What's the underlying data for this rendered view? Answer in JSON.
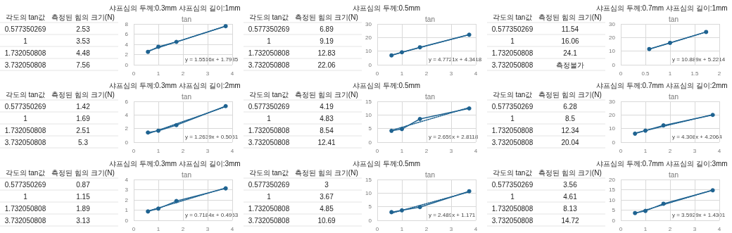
{
  "chart_data": [
    {
      "type": "line",
      "subtitle": "샤프심의 두께:0.3mm 샤프심의 길이:1mm",
      "title": "tan",
      "x": [
        0.577350269,
        1,
        1.732050808,
        3.732050808
      ],
      "grid": true,
      "xlim": [
        0,
        4
      ],
      "xticks": [
        0,
        1,
        2,
        3,
        4
      ],
      "ylim": [
        0,
        8
      ],
      "yticks": [
        0,
        2,
        4,
        6,
        8
      ],
      "annotations": [
        "y = 1.5516x + 1.7935",
        "각도의 tan값",
        "측정된 힘의 크기(N)",
        "0.577350269",
        "2.53",
        "1",
        "3.53",
        "1.732050808",
        "4.48",
        "3.732050808",
        "7.56"
      ],
      "series": [
        {
          "color": "#1f6391",
          "marker": "circle",
          "values": [
            2.53,
            3.53,
            4.48,
            7.56
          ]
        },
        {
          "type": "line",
          "color": "#1f6391",
          "line_style": "dotted",
          "marker": "none",
          "x": [
            0.577350269,
            3.732050808
          ],
          "values": [
            2.69,
            7.58
          ]
        }
      ]
    },
    {
      "type": "line",
      "subtitle": "샤프심의 두께:0.5mm",
      "title": "tan",
      "x": [
        0.577350269,
        1,
        1.732050808,
        3.732050808
      ],
      "grid": true,
      "xlim": [
        0,
        4
      ],
      "xticks": [
        0,
        1,
        2,
        3,
        4
      ],
      "ylim": [
        0,
        30
      ],
      "yticks": [
        0,
        10,
        20,
        30
      ],
      "annotations": [
        "y = 4.7721x + 4.3418",
        "각도의 tan값",
        "측정된 힘의 크기(N)",
        "0.577350269",
        "6.89",
        "1",
        "9.19",
        "1.732050808",
        "12.83",
        "3.732050808",
        "22.06"
      ],
      "series": [
        {
          "color": "#1f6391",
          "marker": "circle",
          "values": [
            6.89,
            9.19,
            12.83,
            22.06
          ]
        },
        {
          "type": "line",
          "color": "#1f6391",
          "line_style": "dotted",
          "marker": "none",
          "x": [
            0.577350269,
            3.732050808
          ],
          "values": [
            7.1,
            22.15
          ]
        }
      ]
    },
    {
      "type": "line",
      "subtitle": "샤프심의 두께:0.7mm 샤프심의 길이:1mm",
      "title": "tan",
      "x": [
        0.577350269,
        1,
        1.732050808
      ],
      "grid": true,
      "xlim": [
        0,
        2
      ],
      "xticks": [
        0,
        0.5,
        1,
        1.5,
        2
      ],
      "ylim": [
        0,
        30
      ],
      "yticks": [
        0,
        10,
        20,
        30
      ],
      "annotations": [
        "y = 10.889x + 5.2214",
        "각도의 tan값",
        "측정된 힘의 크기(N)",
        "0.577350269",
        "11.54",
        "1",
        "16.06",
        "1.732050808",
        "24.1",
        "3.732050808",
        "측정불가"
      ],
      "series": [
        {
          "color": "#1f6391",
          "marker": "circle",
          "values": [
            11.54,
            16.06,
            24.1
          ]
        },
        {
          "type": "line",
          "color": "#1f6391",
          "line_style": "dotted",
          "marker": "none",
          "x": [
            0.577350269,
            1.732050808
          ],
          "values": [
            11.51,
            24.08
          ]
        }
      ]
    },
    {
      "type": "line",
      "subtitle": "샤프심의 두께:0.3mm 샤프심의 길이:2mm",
      "title": "tan",
      "x": [
        0.577350269,
        1,
        1.732050808,
        3.732050808
      ],
      "grid": true,
      "xlim": [
        0,
        4
      ],
      "xticks": [
        0,
        1,
        2,
        3,
        4
      ],
      "ylim": [
        0,
        6
      ],
      "yticks": [
        0,
        2,
        4,
        6
      ],
      "annotations": [
        "y = 1.2639x + 0.5051",
        "각도의 tan값",
        "측정된 힘의 크기(N)",
        "0.577350269",
        "1.42",
        "1",
        "1.69",
        "1.732050808",
        "2.51",
        "3.732050808",
        "5.3"
      ],
      "series": [
        {
          "color": "#1f6391",
          "marker": "circle",
          "values": [
            1.42,
            1.69,
            2.51,
            5.3
          ]
        },
        {
          "type": "line",
          "color": "#1f6391",
          "line_style": "dotted",
          "marker": "none",
          "x": [
            0.577350269,
            3.732050808
          ],
          "values": [
            1.23,
            5.22
          ]
        }
      ]
    },
    {
      "type": "line",
      "subtitle": "샤프심의 두께:0.5mm",
      "title": "tan",
      "x": [
        0.577350269,
        1,
        1.732050808,
        3.732050808
      ],
      "grid": true,
      "xlim": [
        0,
        4
      ],
      "xticks": [
        0,
        1,
        2,
        3,
        4
      ],
      "ylim": [
        0,
        15
      ],
      "yticks": [
        0,
        5,
        10,
        15
      ],
      "annotations": [
        "y = 2.659x + 2.8118",
        "각도의 tan값",
        "측정된 힘의 크기(N)",
        "0.577350269",
        "4.19",
        "1",
        "4.83",
        "1.732050808",
        "8.54",
        "3.732050808",
        "12.41"
      ],
      "series": [
        {
          "color": "#1f6391",
          "marker": "circle",
          "values": [
            4.19,
            4.83,
            8.54,
            12.41
          ]
        },
        {
          "type": "line",
          "color": "#1f6391",
          "line_style": "dotted",
          "marker": "none",
          "x": [
            0.577350269,
            3.732050808
          ],
          "values": [
            4.35,
            12.74
          ]
        }
      ]
    },
    {
      "type": "line",
      "subtitle": "샤프심의 두께:0.7mm 샤프심의 길이:2mm",
      "title": "tan",
      "x": [
        0.577350269,
        1,
        1.732050808,
        3.732050808
      ],
      "grid": true,
      "xlim": [
        0,
        4
      ],
      "xticks": [
        0,
        1,
        2,
        3,
        4
      ],
      "ylim": [
        0,
        30
      ],
      "yticks": [
        0,
        10,
        20,
        30
      ],
      "annotations": [
        "y = 4.308x + 4.2064",
        "각도의 tan값",
        "측정된 힘의 크기(N)",
        "0.577350269",
        "6.28",
        "1",
        "8.5",
        "1.732050808",
        "12.34",
        "3.732050808",
        "20.04"
      ],
      "series": [
        {
          "color": "#1f6391",
          "marker": "circle",
          "values": [
            6.28,
            8.5,
            12.34,
            20.04
          ]
        },
        {
          "type": "line",
          "color": "#1f6391",
          "line_style": "dotted",
          "marker": "none",
          "x": [
            0.577350269,
            3.732050808
          ],
          "values": [
            6.69,
            20.28
          ]
        }
      ]
    },
    {
      "type": "line",
      "subtitle": "샤프심의 두께:0.3mm 샤프심의 길이:3mm",
      "title": "tan",
      "x": [
        0.577350269,
        1,
        1.732050808,
        3.732050808
      ],
      "grid": true,
      "xlim": [
        0,
        4
      ],
      "xticks": [
        0,
        1,
        2,
        3,
        4
      ],
      "ylim": [
        0,
        4
      ],
      "yticks": [
        0,
        1,
        2,
        3,
        4
      ],
      "annotations": [
        "y = 0.7184x + 0.4953",
        "각도의 tan값",
        "측정된 힘의 크기(N)",
        "0.577350269",
        "0.87",
        "1",
        "1.15",
        "1.732050808",
        "1.89",
        "3.732050808",
        "3.13"
      ],
      "series": [
        {
          "color": "#1f6391",
          "marker": "circle",
          "values": [
            0.87,
            1.15,
            1.89,
            3.13
          ]
        },
        {
          "type": "line",
          "color": "#1f6391",
          "line_style": "dotted",
          "marker": "none",
          "x": [
            0.577350269,
            3.732050808
          ],
          "values": [
            0.91,
            3.18
          ]
        }
      ]
    },
    {
      "type": "line",
      "subtitle": "샤프심의 두께:0.5mm",
      "title": "tan",
      "x": [
        0.577350269,
        1,
        1.732050808,
        3.732050808
      ],
      "grid": true,
      "xlim": [
        0,
        4
      ],
      "xticks": [
        0,
        1,
        2,
        3,
        4
      ],
      "ylim": [
        0,
        15
      ],
      "yticks": [
        0,
        5,
        10,
        15
      ],
      "annotations": [
        "y = 2.489x + 1.171",
        "각도의 tan값",
        "측정된 힘의 크기(N)",
        "0.577350269",
        "3",
        "1",
        "3.67",
        "1.732050808",
        "4.85",
        "3.732050808",
        "10.69"
      ],
      "series": [
        {
          "color": "#1f6391",
          "marker": "circle",
          "values": [
            3,
            3.67,
            4.85,
            10.69
          ]
        },
        {
          "type": "line",
          "color": "#1f6391",
          "line_style": "dotted",
          "marker": "none",
          "x": [
            0.577350269,
            3.732050808
          ],
          "values": [
            2.61,
            10.46
          ]
        }
      ]
    },
    {
      "type": "line",
      "subtitle": "샤프심의 두께:0.7mm 샤프심의 길이:3mm",
      "title": "tan",
      "x": [
        0.577350269,
        1,
        1.732050808,
        3.732050808
      ],
      "grid": true,
      "xlim": [
        0,
        4
      ],
      "xticks": [
        0,
        1,
        2,
        3,
        4
      ],
      "ylim": [
        0,
        20
      ],
      "yticks": [
        0,
        5,
        10,
        15,
        20
      ],
      "annotations": [
        "y = 3.5929x + 1.4301",
        "각도의 tan값",
        "측정된 힘의 크기(N)",
        "0.577350269",
        "3.56",
        "1",
        "4.61",
        "1.732050808",
        "8.13",
        "3.732050808",
        "14.72"
      ],
      "series": [
        {
          "color": "#1f6391",
          "marker": "circle",
          "values": [
            3.56,
            4.61,
            8.13,
            14.72
          ]
        },
        {
          "type": "line",
          "color": "#1f6391",
          "line_style": "dotted",
          "marker": "none",
          "x": [
            0.577350269,
            3.732050808
          ],
          "values": [
            3.5,
            14.84
          ]
        }
      ]
    }
  ]
}
